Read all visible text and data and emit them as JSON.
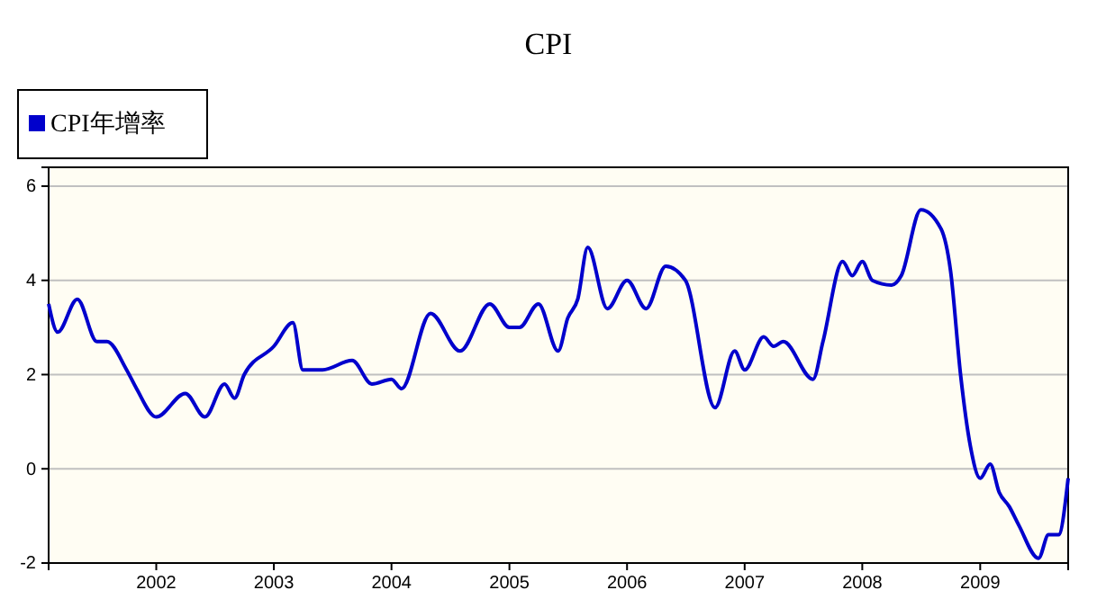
{
  "chart_data": {
    "type": "line",
    "title": "CPI",
    "legend": "top left",
    "grid": "y",
    "marker": "none",
    "line_style": "solid",
    "x": [
      "2001-02",
      "2001-03",
      "2001-05",
      "2001-07",
      "2001-08",
      "2001-10",
      "2001-11",
      "2002-01",
      "2002-04",
      "2002-06",
      "2002-08",
      "2002-09",
      "2002-10",
      "2003-01",
      "2003-03",
      "2003-04",
      "2003-06",
      "2003-09",
      "2003-11",
      "2004-01",
      "2004-02",
      "2004-05",
      "2004-08",
      "2004-11",
      "2005-01",
      "2005-02",
      "2005-04",
      "2005-06",
      "2005-07",
      "2005-08",
      "2005-09",
      "2005-11",
      "2006-01",
      "2006-03",
      "2006-05",
      "2006-07",
      "2006-10",
      "2006-12",
      "2007-01",
      "2007-03",
      "2007-04",
      "2007-05",
      "2007-08",
      "2007-09",
      "2007-11",
      "2007-12",
      "2008-01",
      "2008-02",
      "2008-04",
      "2008-05",
      "2008-07",
      "2008-09",
      "2008-10",
      "2008-11",
      "2008-12",
      "2009-01",
      "2009-02",
      "2009-03",
      "2009-04",
      "2009-05",
      "2009-07",
      "2009-08",
      "2009-09",
      "2009-10"
    ],
    "series": [
      {
        "name": "CPI年增率",
        "color": "#0000cc",
        "values": [
          3.5,
          2.9,
          3.6,
          2.7,
          2.7,
          2.1,
          1.7,
          1.1,
          1.6,
          1.1,
          1.8,
          1.5,
          2.0,
          2.6,
          3.1,
          2.1,
          2.1,
          2.3,
          1.8,
          1.9,
          1.7,
          3.3,
          2.5,
          3.5,
          3.0,
          3.0,
          3.5,
          2.5,
          3.2,
          3.6,
          4.7,
          3.4,
          4.0,
          3.4,
          4.3,
          4.0,
          1.3,
          2.5,
          2.1,
          2.8,
          2.6,
          2.7,
          1.9,
          2.7,
          4.4,
          4.1,
          4.4,
          4.0,
          3.9,
          4.1,
          5.5,
          5.1,
          4.2,
          2.0,
          0.5,
          -0.2,
          0.1,
          -0.5,
          -0.8,
          -1.2,
          -1.9,
          -1.4,
          -1.4,
          -0.2
        ]
      }
    ],
    "xlim": [
      "2001-02",
      "2009-10"
    ],
    "xticks": [
      {
        "value": "2002",
        "label": "2002"
      },
      {
        "value": "2003",
        "label": "2003"
      },
      {
        "value": "2004",
        "label": "2004"
      },
      {
        "value": "2005",
        "label": "2005"
      },
      {
        "value": "2006",
        "label": "2006"
      },
      {
        "value": "2007",
        "label": "2007"
      },
      {
        "value": "2008",
        "label": "2008"
      },
      {
        "value": "2009",
        "label": "2009"
      }
    ],
    "ylim": [
      -2,
      6.4
    ],
    "yticks": [
      -2,
      0,
      2,
      4,
      6
    ]
  }
}
